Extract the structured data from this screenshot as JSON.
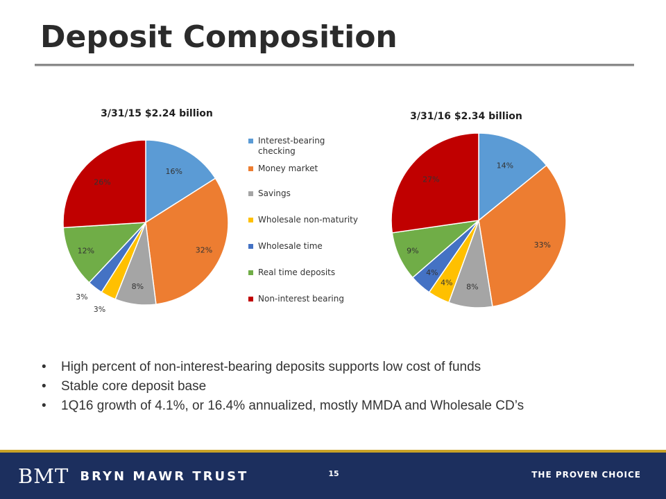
{
  "slide": {
    "title": "Deposit Composition",
    "bullets": [
      "High percent of non-interest-bearing deposits supports low cost of funds",
      "Stable core deposit base",
      "1Q16 growth of 4.1%, or 16.4% annualized, mostly MMDA and Wholesale CD’s"
    ]
  },
  "footer": {
    "logo_mark": "BMT",
    "logo_name": "BRYN MAWR TRUST",
    "page_number": "15",
    "tagline": "THE PROVEN CHOICE"
  },
  "legend": [
    {
      "label": "Interest-bearing checking",
      "color": "#5b9bd5"
    },
    {
      "label": "Money market",
      "color": "#ed7d31"
    },
    {
      "label": "Savings",
      "color": "#a5a5a5"
    },
    {
      "label": "Wholesale non-maturity",
      "color": "#ffc000"
    },
    {
      "label": "Wholesale time",
      "color": "#4472c4"
    },
    {
      "label": "Real time deposits",
      "color": "#70ad47"
    },
    {
      "label": "Non-interest bearing",
      "color": "#c00000"
    }
  ],
  "chart_data": [
    {
      "type": "pie",
      "title": "3/31/15 $2.24 billion",
      "categories": [
        "Interest-bearing checking",
        "Money market",
        "Savings",
        "Wholesale non-maturity",
        "Wholesale time",
        "Real time deposits",
        "Non-interest bearing"
      ],
      "values": [
        16,
        32,
        8,
        3,
        3,
        12,
        26
      ],
      "labels": [
        "16%",
        "32%",
        "8%",
        "3%",
        "3%",
        "12%",
        "26%"
      ],
      "colors": [
        "#5b9bd5",
        "#ed7d31",
        "#a5a5a5",
        "#ffc000",
        "#4472c4",
        "#70ad47",
        "#c00000"
      ],
      "legend_position": "right"
    },
    {
      "type": "pie",
      "title": "3/31/16 $2.34 billion",
      "categories": [
        "Interest-bearing checking",
        "Money market",
        "Savings",
        "Wholesale non-maturity",
        "Wholesale time",
        "Real time deposits",
        "Non-interest bearing"
      ],
      "values": [
        14,
        33,
        8,
        4,
        4,
        9,
        27
      ],
      "labels": [
        "14%",
        "33%",
        "8%",
        "4%",
        "4%",
        "9%",
        "27%"
      ],
      "colors": [
        "#5b9bd5",
        "#ed7d31",
        "#a5a5a5",
        "#ffc000",
        "#4472c4",
        "#70ad47",
        "#c00000"
      ],
      "legend_position": "left"
    }
  ]
}
